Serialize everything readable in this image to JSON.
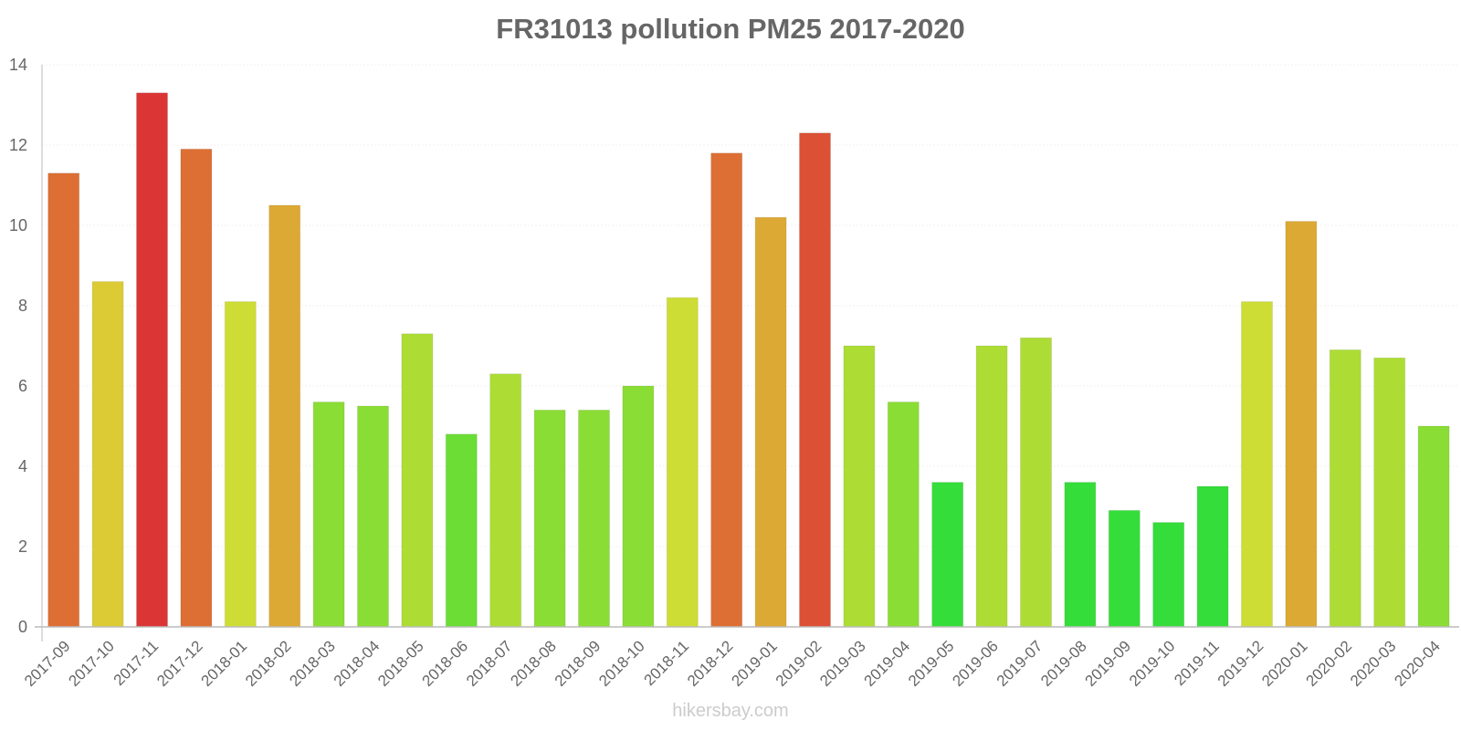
{
  "chart_data": {
    "type": "bar",
    "title": "FR31013 pollution PM25 2017-2020",
    "xlabel": "",
    "ylabel": "",
    "ylim": [
      0,
      14
    ],
    "yticks": [
      0,
      2,
      4,
      6,
      8,
      10,
      12,
      14
    ],
    "grid": true,
    "legend": null,
    "categories": [
      "2017-09",
      "2017-10",
      "2017-11",
      "2017-12",
      "2018-01",
      "2018-02",
      "2018-03",
      "2018-04",
      "2018-05",
      "2018-06",
      "2018-07",
      "2018-08",
      "2018-09",
      "2018-10",
      "2018-11",
      "2018-12",
      "2019-01",
      "2019-02",
      "2019-03",
      "2019-04",
      "2019-05",
      "2019-06",
      "2019-07",
      "2019-08",
      "2019-09",
      "2019-10",
      "2019-11",
      "2019-12",
      "2020-01",
      "2020-02",
      "2020-03",
      "2020-04"
    ],
    "values": [
      11.3,
      8.6,
      13.3,
      11.9,
      8.1,
      10.5,
      5.6,
      5.5,
      7.3,
      4.8,
      6.3,
      5.4,
      5.4,
      6.0,
      8.2,
      11.8,
      10.2,
      12.3,
      7.0,
      5.6,
      3.6,
      7.0,
      7.2,
      3.6,
      2.9,
      2.6,
      3.5,
      8.1,
      10.1,
      6.9,
      6.7,
      5.0
    ],
    "colors": [
      "#DD6F35",
      "#DCCB35",
      "#DB3535",
      "#DD6F35",
      "#CEDD35",
      "#DDA935",
      "#8ADD35",
      "#8ADD35",
      "#ADDD35",
      "#6BDD35",
      "#ADDD35",
      "#8ADD35",
      "#8ADD35",
      "#8ADD35",
      "#CEDD35",
      "#DD6F35",
      "#DDA935",
      "#DC5035",
      "#ADDD35",
      "#8ADD35",
      "#35DD3A",
      "#ADDD35",
      "#ADDD35",
      "#35DD3A",
      "#35DD3A",
      "#35DD3A",
      "#35DD3A",
      "#CEDD35",
      "#DDA935",
      "#ADDD35",
      "#ADDD35",
      "#8ADD35"
    ]
  },
  "watermark": "hikersbay.com"
}
